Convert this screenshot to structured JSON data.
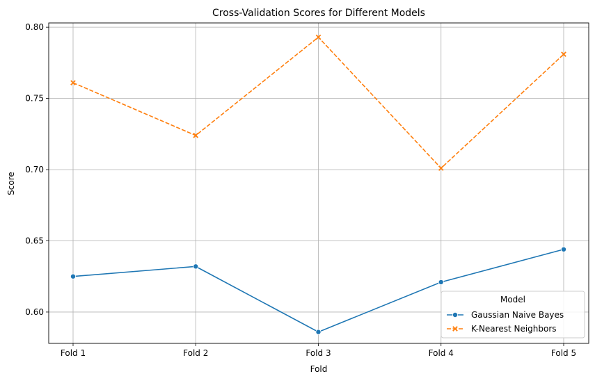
{
  "chart_data": {
    "type": "line",
    "title": "Cross-Validation Scores for Different Models",
    "xlabel": "Fold",
    "ylabel": "Score",
    "categories": [
      "Fold 1",
      "Fold 2",
      "Fold 3",
      "Fold 4",
      "Fold 5"
    ],
    "ylim": [
      0.578,
      0.803
    ],
    "yticks": [
      0.6,
      0.65,
      0.7,
      0.75,
      0.8
    ],
    "ytick_labels": [
      "0.60",
      "0.65",
      "0.70",
      "0.75",
      "0.80"
    ],
    "grid": true,
    "legend": {
      "title": "Model",
      "placement": "lower-right"
    },
    "series": [
      {
        "name": "Gaussian Naive Bayes",
        "values": [
          0.625,
          0.632,
          0.586,
          0.621,
          0.644
        ],
        "color": "#1f77b4",
        "marker": "circle",
        "line_style": "solid"
      },
      {
        "name": "K-Nearest Neighbors",
        "values": [
          0.761,
          0.724,
          0.793,
          0.701,
          0.781
        ],
        "color": "#ff7f0e",
        "marker": "x",
        "line_style": "dashed"
      }
    ]
  }
}
